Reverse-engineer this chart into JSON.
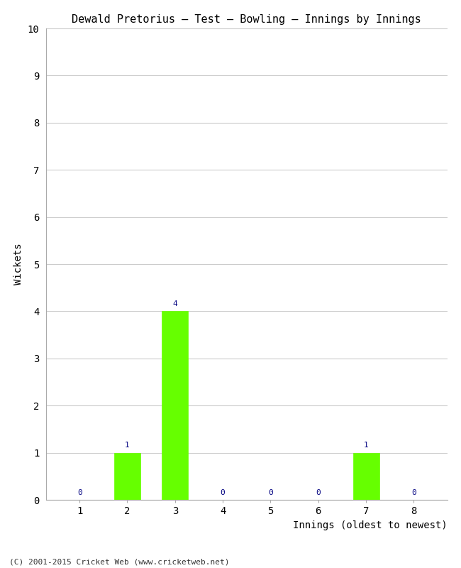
{
  "title": "Dewald Pretorius – Test – Bowling – Innings by Innings",
  "xlabel": "Innings (oldest to newest)",
  "ylabel": "Wickets",
  "categories": [
    "1",
    "2",
    "3",
    "4",
    "5",
    "6",
    "7",
    "8"
  ],
  "values": [
    0,
    1,
    4,
    0,
    0,
    0,
    1,
    0
  ],
  "bar_color": "#66ff00",
  "bar_edge_color": "#66ff00",
  "label_color": "#000080",
  "background_color": "#ffffff",
  "grid_color": "#cccccc",
  "ylim": [
    0,
    10
  ],
  "yticks": [
    0,
    1,
    2,
    3,
    4,
    5,
    6,
    7,
    8,
    9,
    10
  ],
  "footer": "(C) 2001-2015 Cricket Web (www.cricketweb.net)",
  "title_fontsize": 11,
  "axis_label_fontsize": 10,
  "tick_fontsize": 10,
  "bar_label_fontsize": 8,
  "footer_fontsize": 8
}
